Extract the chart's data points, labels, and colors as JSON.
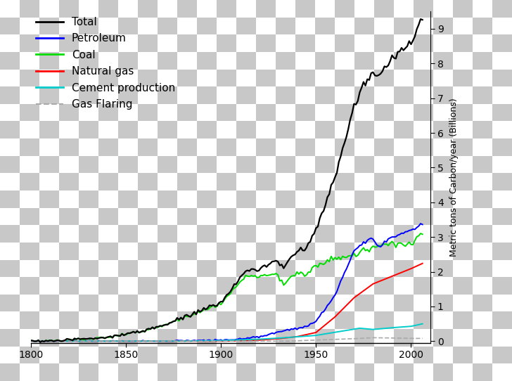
{
  "ylabel": "Metric tons of Carbon/year (Billions)",
  "xlim": [
    1800,
    2010
  ],
  "ylim": [
    -0.05,
    9.5
  ],
  "yticks": [
    0,
    1,
    2,
    3,
    4,
    5,
    6,
    7,
    8,
    9
  ],
  "xticks": [
    1800,
    1850,
    1900,
    1950,
    2000
  ],
  "checker_light": "#ffffff",
  "checker_dark": "#c8c8c8",
  "checker_cols": 26,
  "checker_rows": 22,
  "series": {
    "total": {
      "color": "#000000",
      "label": "Total",
      "lw": 1.6,
      "ls": "-"
    },
    "petroleum": {
      "color": "#0000ff",
      "label": "Petroleum",
      "lw": 1.4,
      "ls": "-"
    },
    "coal": {
      "color": "#00dd00",
      "label": "Coal",
      "lw": 1.4,
      "ls": "-"
    },
    "natural_gas": {
      "color": "#ff0000",
      "label": "Natural gas",
      "lw": 1.4,
      "ls": "-"
    },
    "cement": {
      "color": "#00cccc",
      "label": "Cement production",
      "lw": 1.4,
      "ls": "-"
    },
    "gas_flaring": {
      "color": "#aaaaaa",
      "label": "Gas Flaring",
      "lw": 1.2,
      "ls": "--"
    }
  }
}
